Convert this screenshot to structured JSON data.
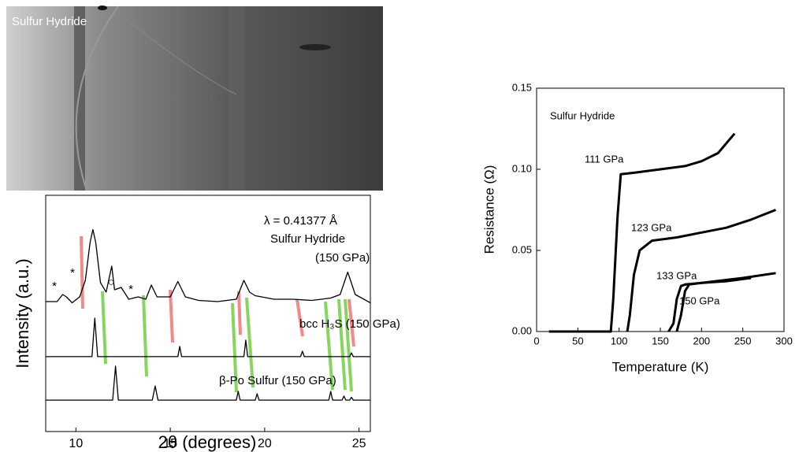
{
  "image_label": "Sulfur Hydride",
  "chart_data": [
    {
      "type": "line",
      "annotations": [
        "λ = 0.41377 Å",
        "Sulfur Hydride",
        "(150 GPa)"
      ],
      "peak_marks": [
        "*",
        "*",
        "○",
        "*"
      ],
      "x_label": "2θ (degrees)",
      "y_label": "Intensity (a.u.)",
      "xlim": [
        8.4,
        25.6
      ],
      "xticks": [
        10,
        15,
        20,
        25
      ],
      "ylim": [
        0,
        10
      ],
      "series": [
        {
          "color": "#000000",
          "x": [
            8.4,
            9.0,
            9.3,
            9.5,
            9.8,
            10.2,
            10.5,
            10.75,
            10.9,
            11.05,
            11.3,
            11.6,
            11.9,
            12.05,
            12.4,
            12.8,
            13.3,
            13.7,
            14.0,
            14.3,
            15.0,
            15.4,
            15.8,
            16.5,
            17.5,
            18.5,
            18.9,
            19.2,
            19.5,
            20.5,
            21.5,
            22.5,
            23.5,
            24.0,
            24.4,
            24.8,
            25.6
          ],
          "values": [
            5.5,
            5.5,
            5.8,
            5.7,
            5.45,
            5.7,
            6.4,
            8.0,
            8.55,
            8.0,
            6.3,
            5.9,
            7.0,
            6.0,
            6.1,
            5.6,
            5.7,
            5.6,
            6.2,
            5.7,
            5.7,
            6.35,
            5.7,
            5.55,
            5.5,
            5.6,
            6.4,
            5.9,
            5.75,
            5.6,
            5.6,
            5.55,
            5.65,
            5.8,
            6.75,
            5.8,
            5.45
          ]
        },
        {
          "name": "bcc H₃S (150 GPa)",
          "color": "#000000",
          "x": [
            8.4,
            10.85,
            11.0,
            11.15,
            15.4,
            15.5,
            15.6,
            18.9,
            19.0,
            19.1,
            21.9,
            22.0,
            22.1,
            24.5,
            24.6,
            24.7,
            25.6
          ],
          "values": [
            3.17,
            3.17,
            4.8,
            3.17,
            3.17,
            3.6,
            3.17,
            3.17,
            3.87,
            3.17,
            3.17,
            3.4,
            3.17,
            3.17,
            3.33,
            3.17,
            3.17
          ]
        },
        {
          "name": "β-Po Sulfur (150 GPa)",
          "color": "#000000",
          "x": [
            8.4,
            11.95,
            12.1,
            12.25,
            14.05,
            14.2,
            14.35,
            18.5,
            18.6,
            18.7,
            19.5,
            19.6,
            19.7,
            23.4,
            23.5,
            23.6,
            24.1,
            24.2,
            24.3,
            24.5,
            24.6,
            24.7,
            25.6
          ],
          "values": [
            1.33,
            1.33,
            2.77,
            1.33,
            1.33,
            1.93,
            1.33,
            1.33,
            1.7,
            1.33,
            1.33,
            1.6,
            1.33,
            1.33,
            1.7,
            1.33,
            1.33,
            1.5,
            1.33,
            1.33,
            1.45,
            1.33,
            1.33
          ]
        }
      ]
    },
    {
      "type": "line",
      "annotations": [
        "Sulfur Hydride"
      ],
      "x_label": "Temperature (K)",
      "y_label": "Resistance (Ω)",
      "xlim": [
        0,
        300
      ],
      "xticks": [
        0,
        50,
        100,
        150,
        200,
        250,
        300
      ],
      "ylim": [
        0,
        0.15
      ],
      "yticks": [
        {
          "value": 0,
          "label": "0.00"
        },
        0.05,
        {
          "value": 0.1,
          "label": "0.10"
        },
        0.15
      ],
      "series": [
        {
          "name": "111 GPa",
          "color": "#000000",
          "x": [
            15,
            90,
            93,
            98,
            102,
            120,
            150,
            180,
            200,
            220,
            240
          ],
          "values": [
            0,
            0,
            0.02,
            0.07,
            0.097,
            0.098,
            0.1,
            0.102,
            0.105,
            0.11,
            0.122
          ]
        },
        {
          "name": "123 GPa",
          "color": "#000000",
          "x": [
            110,
            113,
            118,
            125,
            140,
            170,
            200,
            230,
            260,
            290
          ],
          "values": [
            0,
            0.01,
            0.035,
            0.05,
            0.056,
            0.058,
            0.061,
            0.064,
            0.069,
            0.075
          ]
        },
        {
          "name": "133 GPa",
          "color": "#000000",
          "x": [
            160,
            166,
            170,
            175,
            180,
            200,
            250,
            290
          ],
          "values": [
            0,
            0.005,
            0.02,
            0.028,
            0.029,
            0.03,
            0.033,
            0.036
          ]
        },
        {
          "name": "150 GPa",
          "color": "#000000",
          "x": [
            170,
            175,
            180,
            185,
            200,
            230,
            260
          ],
          "values": [
            0,
            0.01,
            0.025,
            0.029,
            0.03,
            0.031,
            0.033
          ]
        }
      ]
    }
  ]
}
